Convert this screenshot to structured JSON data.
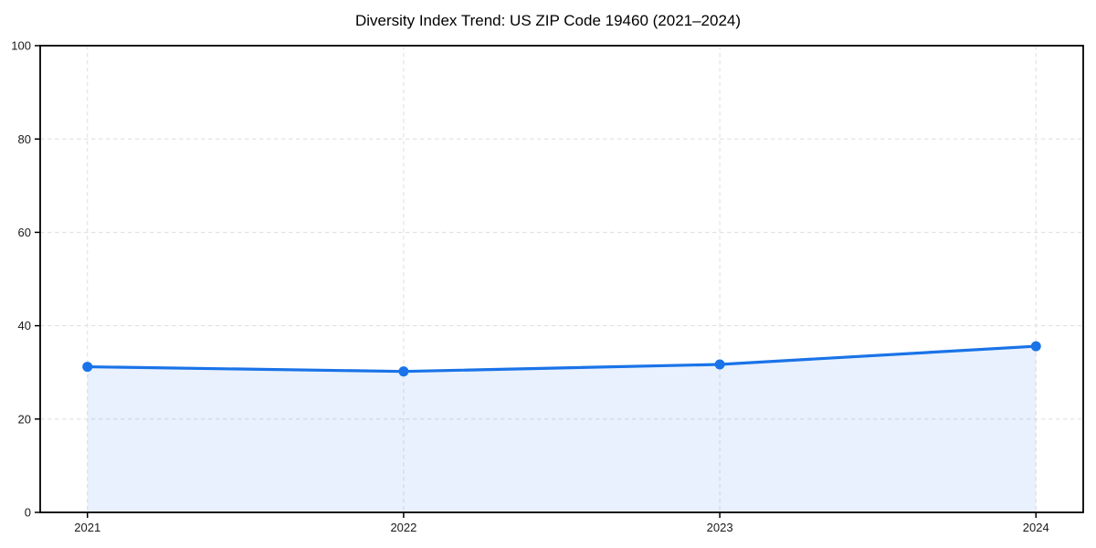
{
  "page": {
    "background": "#ffffff"
  },
  "chart_data": {
    "type": "line",
    "title": "Diversity Index Trend: US ZIP Code 19460 (2021–2024)",
    "categories": [
      "2021",
      "2022",
      "2023",
      "2024"
    ],
    "series": [
      {
        "name": "Diversity Index",
        "values": [
          31.2,
          30.2,
          31.7,
          35.6
        ]
      }
    ],
    "xlabel": "",
    "ylabel": "",
    "ylim": [
      0,
      100
    ],
    "yticks": [
      0,
      20,
      40,
      60,
      80,
      100
    ],
    "grid": true,
    "grid_style": "dashed",
    "legend_position": "none",
    "area_fill_under_line": true,
    "colors": {
      "line": "#1a73e8",
      "marker": "#1a73e8",
      "area_fill": "rgba(26,115,232,0.10)",
      "grid": "#e1e1e1",
      "spine": "#000000",
      "tick": "#000000",
      "tick_label": "#1a1a1a",
      "title": "#000000",
      "background": "#ffffff"
    }
  }
}
